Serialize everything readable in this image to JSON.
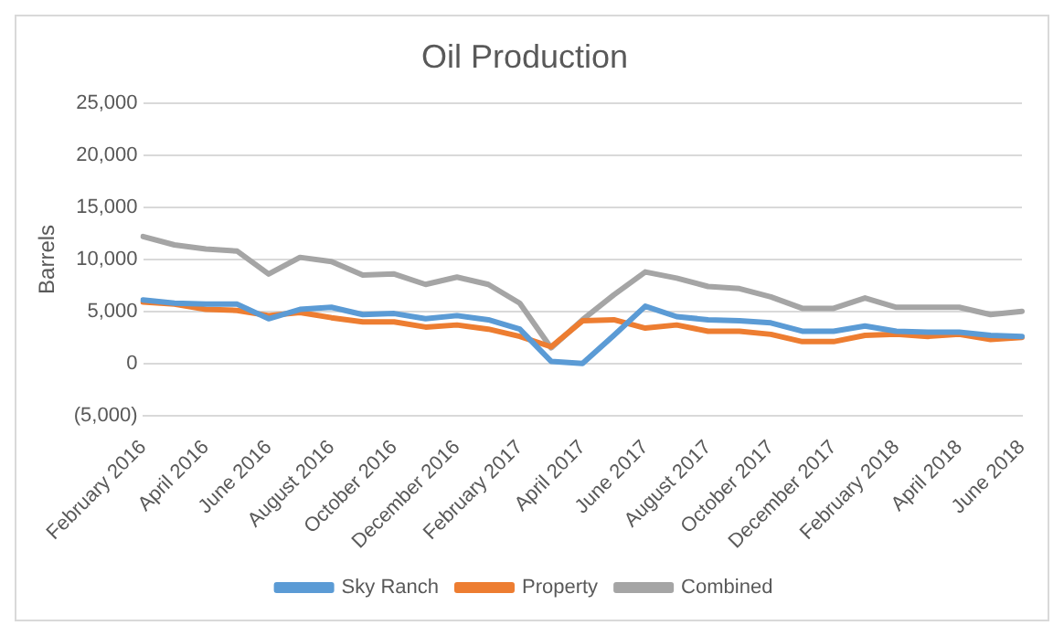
{
  "chart_data": {
    "type": "line",
    "title": "Oil Production",
    "ylabel": "Barrels",
    "categories": [
      "February 2016",
      null,
      "April 2016",
      null,
      "June 2016",
      null,
      "August 2016",
      null,
      "October 2016",
      null,
      "December 2016",
      null,
      "February 2017",
      null,
      "April 2017",
      null,
      "June 2017",
      null,
      "August 2017",
      null,
      "October 2017",
      null,
      "December 2017",
      null,
      "February 2018",
      null,
      "April 2018",
      null,
      "June 2018"
    ],
    "series": [
      {
        "name": "Sky Ranch",
        "color": "#5b9bd5",
        "values": [
          6100,
          5800,
          5700,
          5700,
          4300,
          5200,
          5400,
          4700,
          4800,
          4300,
          4600,
          4200,
          3300,
          200,
          0,
          2700,
          5500,
          4500,
          4200,
          4100,
          3900,
          3100,
          3100,
          3600,
          3100,
          3000,
          3000,
          2700,
          2600
        ]
      },
      {
        "name": "Property",
        "color": "#ed7d31",
        "values": [
          5900,
          5700,
          5200,
          5100,
          4600,
          4900,
          4400,
          4000,
          4000,
          3500,
          3700,
          3300,
          2600,
          1600,
          4100,
          4200,
          3400,
          3700,
          3100,
          3100,
          2800,
          2100,
          2100,
          2700,
          2800,
          2600,
          2800,
          2300,
          2500
        ]
      },
      {
        "name": "Combined",
        "color": "#a5a5a5",
        "values": [
          12200,
          11400,
          11000,
          10800,
          8600,
          10200,
          9800,
          8500,
          8600,
          7600,
          8300,
          7600,
          5800,
          1500,
          4200,
          6600,
          8800,
          8200,
          7400,
          7200,
          6400,
          5300,
          5300,
          6300,
          5400,
          5400,
          5400,
          4700,
          5000
        ]
      }
    ],
    "ylim": [
      -5000,
      25000
    ],
    "yticks": [
      {
        "value": -5000,
        "label": "(5,000)"
      },
      {
        "value": 0,
        "label": "0"
      },
      {
        "value": 5000,
        "label": "5,000"
      },
      {
        "value": 10000,
        "label": "10,000"
      },
      {
        "value": 15000,
        "label": "15,000"
      },
      {
        "value": 20000,
        "label": "20,000"
      },
      {
        "value": 25000,
        "label": "25,000"
      }
    ],
    "grid": "y",
    "legend": "bottom",
    "marker": "none",
    "line_style": "solid"
  }
}
